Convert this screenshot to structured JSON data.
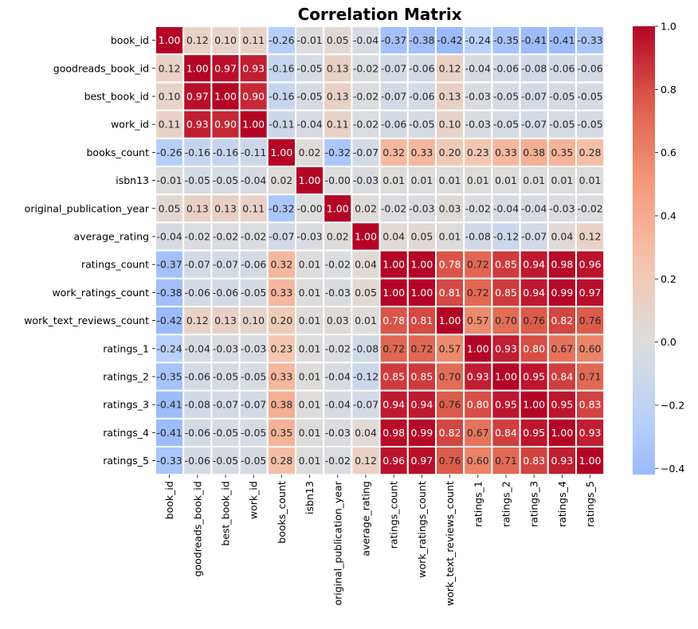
{
  "chart_data": {
    "type": "heatmap",
    "title": "Correlation Matrix",
    "labels": [
      "book_id",
      "goodreads_book_id",
      "best_book_id",
      "work_id",
      "books_count",
      "isbn13",
      "original_publication_year",
      "average_rating",
      "ratings_count",
      "work_ratings_count",
      "work_text_reviews_count",
      "ratings_1",
      "ratings_2",
      "ratings_3",
      "ratings_4",
      "ratings_5"
    ],
    "matrix": [
      [
        "1.00",
        "0.12",
        "0.10",
        "0.11",
        "-0.26",
        "-0.01",
        "0.05",
        "-0.04",
        "-0.37",
        "-0.38",
        "-0.42",
        "-0.24",
        "-0.35",
        "-0.41",
        "-0.41",
        "-0.33"
      ],
      [
        "0.12",
        "1.00",
        "0.97",
        "0.93",
        "-0.16",
        "-0.05",
        "0.13",
        "-0.02",
        "-0.07",
        "-0.06",
        "0.12",
        "-0.04",
        "-0.06",
        "-0.08",
        "-0.06",
        "-0.06"
      ],
      [
        "0.10",
        "0.97",
        "1.00",
        "0.90",
        "-0.16",
        "-0.05",
        "0.13",
        "-0.02",
        "-0.07",
        "-0.06",
        "0.13",
        "-0.03",
        "-0.05",
        "-0.07",
        "-0.05",
        "-0.05"
      ],
      [
        "0.11",
        "0.93",
        "0.90",
        "1.00",
        "-0.11",
        "-0.04",
        "0.11",
        "-0.02",
        "-0.06",
        "-0.05",
        "0.10",
        "-0.03",
        "-0.05",
        "-0.07",
        "-0.05",
        "-0.05"
      ],
      [
        "-0.26",
        "-0.16",
        "-0.16",
        "-0.11",
        "1.00",
        "0.02",
        "-0.32",
        "-0.07",
        "0.32",
        "0.33",
        "0.20",
        "0.23",
        "0.33",
        "0.38",
        "0.35",
        "0.28"
      ],
      [
        "-0.01",
        "-0.05",
        "-0.05",
        "-0.04",
        "0.02",
        "1.00",
        "-0.00",
        "-0.03",
        "0.01",
        "0.01",
        "0.01",
        "0.01",
        "0.01",
        "0.01",
        "0.01",
        "0.01"
      ],
      [
        "0.05",
        "0.13",
        "0.13",
        "0.11",
        "-0.32",
        "-0.00",
        "1.00",
        "0.02",
        "-0.02",
        "-0.03",
        "0.03",
        "-0.02",
        "-0.04",
        "-0.04",
        "-0.03",
        "-0.02"
      ],
      [
        "-0.04",
        "-0.02",
        "-0.02",
        "-0.02",
        "-0.07",
        "-0.03",
        "0.02",
        "1.00",
        "0.04",
        "0.05",
        "0.01",
        "-0.08",
        "-0.12",
        "-0.07",
        "0.04",
        "0.12"
      ],
      [
        "-0.37",
        "-0.07",
        "-0.07",
        "-0.06",
        "0.32",
        "0.01",
        "-0.02",
        "0.04",
        "1.00",
        "1.00",
        "0.78",
        "0.72",
        "0.85",
        "0.94",
        "0.98",
        "0.96"
      ],
      [
        "-0.38",
        "-0.06",
        "-0.06",
        "-0.05",
        "0.33",
        "0.01",
        "-0.03",
        "0.05",
        "1.00",
        "1.00",
        "0.81",
        "0.72",
        "0.85",
        "0.94",
        "0.99",
        "0.97"
      ],
      [
        "-0.42",
        "0.12",
        "0.13",
        "0.10",
        "0.20",
        "0.01",
        "0.03",
        "0.01",
        "0.78",
        "0.81",
        "1.00",
        "0.57",
        "0.70",
        "0.76",
        "0.82",
        "0.76"
      ],
      [
        "-0.24",
        "-0.04",
        "-0.03",
        "-0.03",
        "0.23",
        "0.01",
        "-0.02",
        "-0.08",
        "0.72",
        "0.72",
        "0.57",
        "1.00",
        "0.93",
        "0.80",
        "0.67",
        "0.60"
      ],
      [
        "-0.35",
        "-0.06",
        "-0.05",
        "-0.05",
        "0.33",
        "0.01",
        "-0.04",
        "-0.12",
        "0.85",
        "0.85",
        "0.70",
        "0.93",
        "1.00",
        "0.95",
        "0.84",
        "0.71"
      ],
      [
        "-0.41",
        "-0.08",
        "-0.07",
        "-0.07",
        "0.38",
        "0.01",
        "-0.04",
        "-0.07",
        "0.94",
        "0.94",
        "0.76",
        "0.80",
        "0.95",
        "1.00",
        "0.95",
        "0.83"
      ],
      [
        "-0.41",
        "-0.06",
        "-0.05",
        "-0.05",
        "0.35",
        "0.01",
        "-0.03",
        "0.04",
        "0.98",
        "0.99",
        "0.82",
        "0.67",
        "0.84",
        "0.95",
        "1.00",
        "0.93"
      ],
      [
        "-0.33",
        "-0.06",
        "-0.05",
        "-0.05",
        "0.28",
        "0.01",
        "-0.02",
        "0.12",
        "0.96",
        "0.97",
        "0.76",
        "0.60",
        "0.71",
        "0.83",
        "0.93",
        "1.00"
      ]
    ],
    "colormap": "coolwarm",
    "center": 0.0,
    "vmin": -0.42,
    "vmax": 1.0,
    "colorbar_ticks": [
      "1.0",
      "0.8",
      "0.6",
      "0.4",
      "0.2",
      "0.0",
      "−0.2",
      "−0.4"
    ],
    "colorbar_tick_values": [
      1.0,
      0.8,
      0.6,
      0.4,
      0.2,
      0.0,
      -0.2,
      -0.4
    ],
    "grid": false,
    "cell_separator_color": "#ffffff"
  }
}
